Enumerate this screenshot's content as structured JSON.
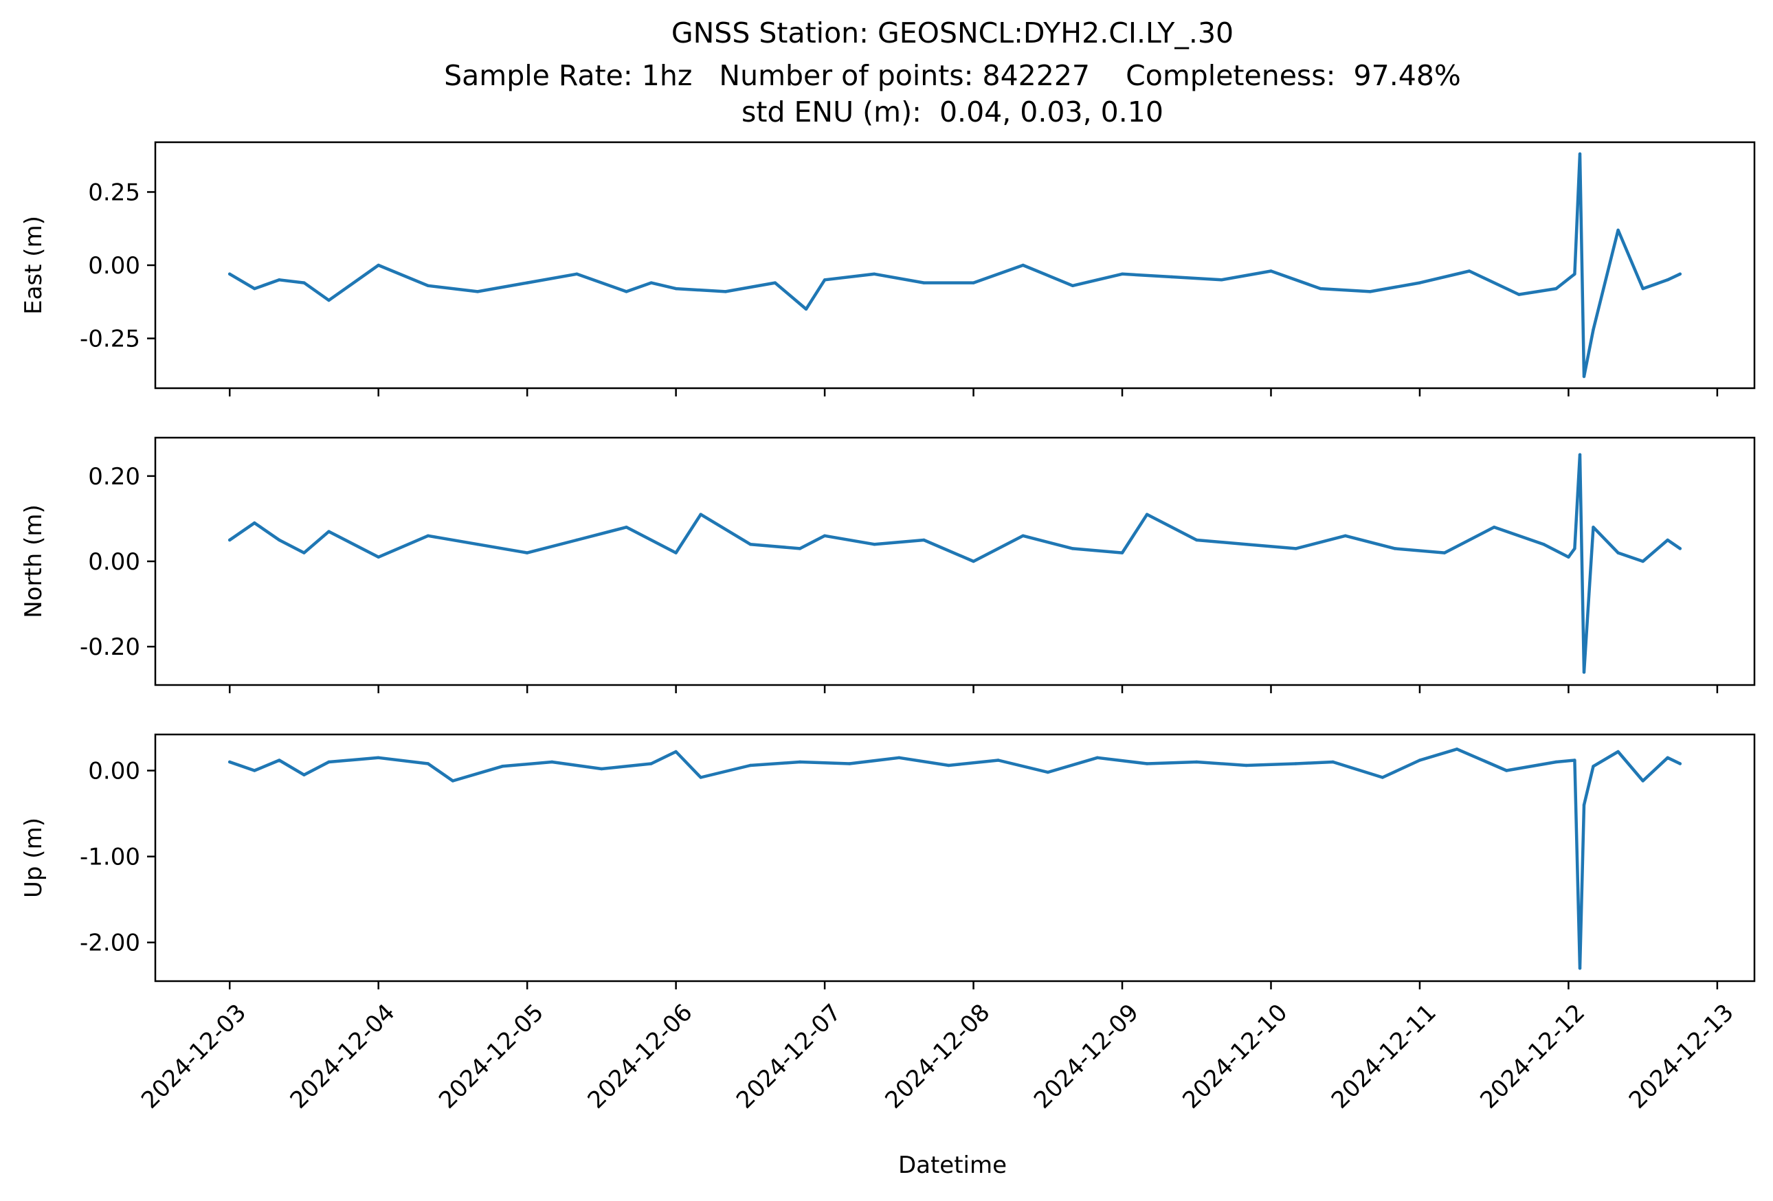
{
  "chart_data": {
    "type": "line",
    "title_lines": [
      "GNSS Station: GEOSNCL:DYH2.CI.LY_.30",
      "Sample Rate: 1hz   Number of points: 842227    Completeness:  97.48%",
      "std ENU (m):  0.04, 0.03, 0.10"
    ],
    "xlabel": "Datetime",
    "x_ticks": [
      "2024-12-03",
      "2024-12-04",
      "2024-12-05",
      "2024-12-06",
      "2024-12-07",
      "2024-12-08",
      "2024-12-09",
      "2024-12-10",
      "2024-12-11",
      "2024-12-12",
      "2024-12-13"
    ],
    "x_start": "2024-12-03",
    "x_end": "2024-12-12T18:00",
    "xlim": [
      "2024-12-02T12:00",
      "2024-12-13T06:00"
    ],
    "color": "#1f77b4",
    "grid": false,
    "panels": [
      {
        "ylabel": "East (m)",
        "ylim": [
          -0.42,
          0.42
        ],
        "yticks": [
          0.25,
          0.0,
          -0.25
        ],
        "ytick_labels": [
          "0.25",
          "0.00",
          "-0.25"
        ],
        "show_x_tick_labels": false,
        "series": [
          {
            "x": [
              "2024-12-03T00:00",
              "2024-12-03T04:00",
              "2024-12-03T08:00",
              "2024-12-03T12:00",
              "2024-12-03T16:00",
              "2024-12-04T00:00",
              "2024-12-04T08:00",
              "2024-12-04T16:00",
              "2024-12-05T00:00",
              "2024-12-05T08:00",
              "2024-12-05T16:00",
              "2024-12-05T20:00",
              "2024-12-06T00:00",
              "2024-12-06T08:00",
              "2024-12-06T16:00",
              "2024-12-06T21:00",
              "2024-12-07T00:00",
              "2024-12-07T08:00",
              "2024-12-07T16:00",
              "2024-12-08T00:00",
              "2024-12-08T08:00",
              "2024-12-08T16:00",
              "2024-12-09T00:00",
              "2024-12-09T08:00",
              "2024-12-09T16:00",
              "2024-12-10T00:00",
              "2024-12-10T08:00",
              "2024-12-10T16:00",
              "2024-12-11T00:00",
              "2024-12-11T08:00",
              "2024-12-11T16:00",
              "2024-12-11T22:00",
              "2024-12-12T01:00",
              "2024-12-12T01:50",
              "2024-12-12T02:30",
              "2024-12-12T04:00",
              "2024-12-12T08:00",
              "2024-12-12T12:00",
              "2024-12-12T16:00",
              "2024-12-12T18:00"
            ],
            "y": [
              -0.03,
              -0.08,
              -0.05,
              -0.06,
              -0.12,
              0.0,
              -0.07,
              -0.09,
              -0.06,
              -0.03,
              -0.09,
              -0.06,
              -0.08,
              -0.09,
              -0.06,
              -0.15,
              -0.05,
              -0.03,
              -0.06,
              -0.06,
              0.0,
              -0.07,
              -0.03,
              -0.04,
              -0.05,
              -0.02,
              -0.08,
              -0.09,
              -0.06,
              -0.02,
              -0.1,
              -0.08,
              -0.03,
              0.38,
              -0.38,
              -0.22,
              0.12,
              -0.08,
              -0.05,
              -0.03
            ]
          }
        ]
      },
      {
        "ylabel": "North (m)",
        "ylim": [
          -0.29,
          0.29
        ],
        "yticks": [
          0.2,
          0.0,
          -0.2
        ],
        "ytick_labels": [
          "0.20",
          "0.00",
          "-0.20"
        ],
        "show_x_tick_labels": false,
        "series": [
          {
            "x": [
              "2024-12-03T00:00",
              "2024-12-03T04:00",
              "2024-12-03T08:00",
              "2024-12-03T12:00",
              "2024-12-03T16:00",
              "2024-12-04T00:00",
              "2024-12-04T08:00",
              "2024-12-04T16:00",
              "2024-12-05T00:00",
              "2024-12-05T08:00",
              "2024-12-05T16:00",
              "2024-12-06T00:00",
              "2024-12-06T04:00",
              "2024-12-06T12:00",
              "2024-12-06T20:00",
              "2024-12-07T00:00",
              "2024-12-07T08:00",
              "2024-12-07T16:00",
              "2024-12-08T00:00",
              "2024-12-08T08:00",
              "2024-12-08T16:00",
              "2024-12-09T00:00",
              "2024-12-09T04:00",
              "2024-12-09T12:00",
              "2024-12-09T20:00",
              "2024-12-10T04:00",
              "2024-12-10T12:00",
              "2024-12-10T20:00",
              "2024-12-11T04:00",
              "2024-12-11T12:00",
              "2024-12-11T20:00",
              "2024-12-12T00:00",
              "2024-12-12T01:00",
              "2024-12-12T01:50",
              "2024-12-12T02:30",
              "2024-12-12T04:00",
              "2024-12-12T08:00",
              "2024-12-12T12:00",
              "2024-12-12T16:00",
              "2024-12-12T18:00"
            ],
            "y": [
              0.05,
              0.09,
              0.05,
              0.02,
              0.07,
              0.01,
              0.06,
              0.04,
              0.02,
              0.05,
              0.08,
              0.02,
              0.11,
              0.04,
              0.03,
              0.06,
              0.04,
              0.05,
              0.0,
              0.06,
              0.03,
              0.02,
              0.11,
              0.05,
              0.04,
              0.03,
              0.06,
              0.03,
              0.02,
              0.08,
              0.04,
              0.01,
              0.03,
              0.25,
              -0.26,
              0.08,
              0.02,
              0.0,
              0.05,
              0.03
            ]
          }
        ]
      },
      {
        "ylabel": "Up (m)",
        "ylim": [
          -2.45,
          0.42
        ],
        "yticks": [
          0.0,
          -1.0,
          -2.0
        ],
        "ytick_labels": [
          "0.00",
          "-1.00",
          "-2.00"
        ],
        "show_x_tick_labels": true,
        "series": [
          {
            "x": [
              "2024-12-03T00:00",
              "2024-12-03T04:00",
              "2024-12-03T08:00",
              "2024-12-03T12:00",
              "2024-12-03T16:00",
              "2024-12-04T00:00",
              "2024-12-04T08:00",
              "2024-12-04T12:00",
              "2024-12-04T20:00",
              "2024-12-05T04:00",
              "2024-12-05T12:00",
              "2024-12-05T20:00",
              "2024-12-06T00:00",
              "2024-12-06T04:00",
              "2024-12-06T12:00",
              "2024-12-06T20:00",
              "2024-12-07T04:00",
              "2024-12-07T12:00",
              "2024-12-07T20:00",
              "2024-12-08T04:00",
              "2024-12-08T12:00",
              "2024-12-08T20:00",
              "2024-12-09T04:00",
              "2024-12-09T12:00",
              "2024-12-09T20:00",
              "2024-12-10T04:00",
              "2024-12-10T10:00",
              "2024-12-10T18:00",
              "2024-12-11T00:00",
              "2024-12-11T06:00",
              "2024-12-11T14:00",
              "2024-12-11T22:00",
              "2024-12-12T01:00",
              "2024-12-12T01:50",
              "2024-12-12T02:30",
              "2024-12-12T04:00",
              "2024-12-12T08:00",
              "2024-12-12T12:00",
              "2024-12-12T16:00",
              "2024-12-12T18:00"
            ],
            "y": [
              0.1,
              0.0,
              0.12,
              -0.05,
              0.1,
              0.15,
              0.08,
              -0.12,
              0.05,
              0.1,
              0.02,
              0.08,
              0.22,
              -0.08,
              0.06,
              0.1,
              0.08,
              0.15,
              0.06,
              0.12,
              -0.02,
              0.15,
              0.08,
              0.1,
              0.06,
              0.08,
              0.1,
              -0.08,
              0.12,
              0.25,
              0.0,
              0.1,
              0.12,
              -2.3,
              -0.4,
              0.05,
              0.22,
              -0.12,
              0.15,
              0.08
            ]
          }
        ]
      }
    ]
  }
}
